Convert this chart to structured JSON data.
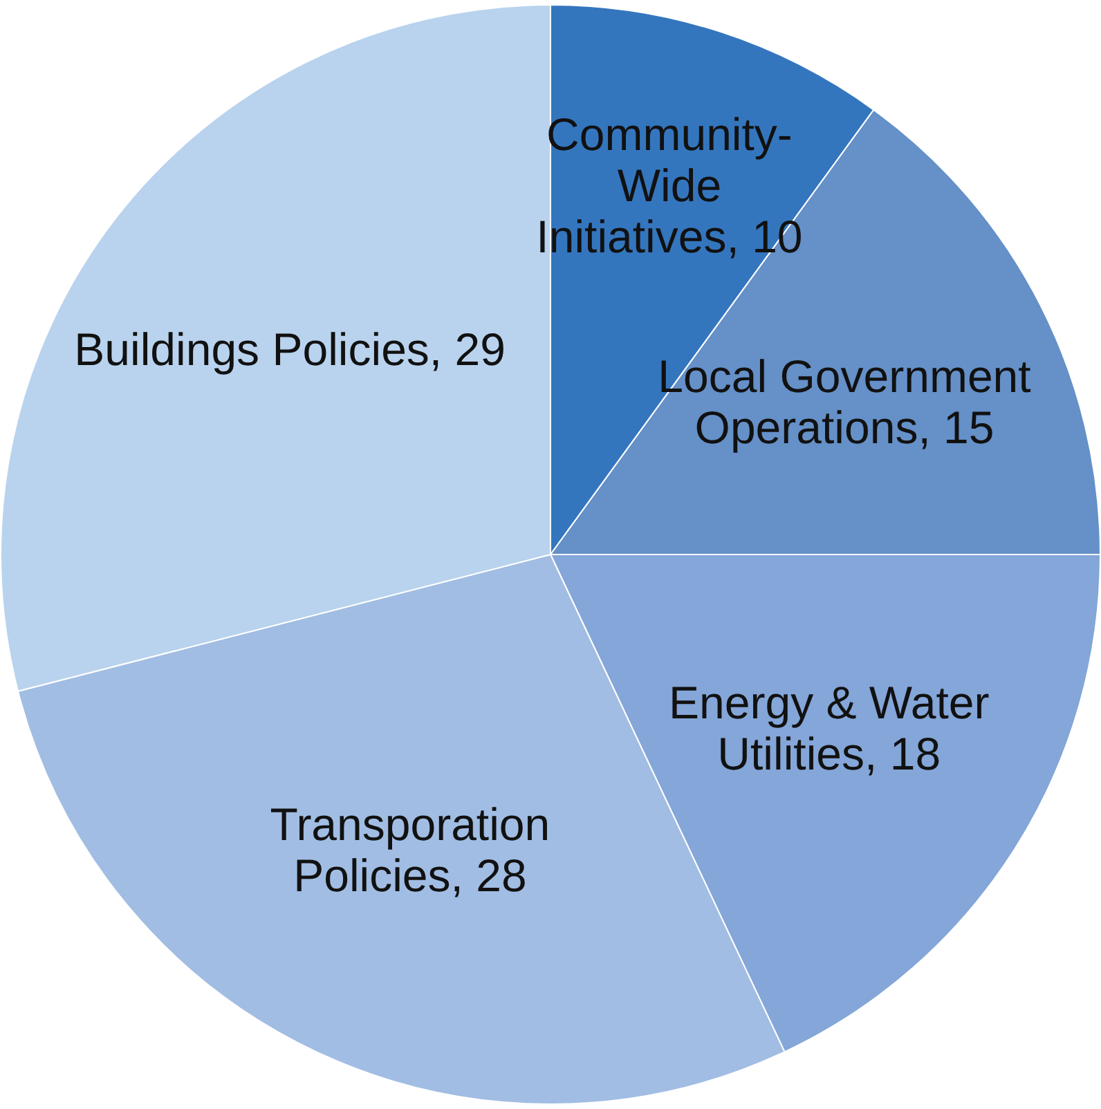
{
  "chart_data": {
    "type": "pie",
    "categories": [
      "Community-Wide Initiatives",
      "Local Government Operations",
      "Energy & Water Utilities",
      "Transporation Policies",
      "Buildings Policies"
    ],
    "values": [
      10,
      15,
      18,
      28,
      29
    ],
    "colors": [
      "#3476be",
      "#6590c8",
      "#84a6d8",
      "#a1bde3",
      "#b9d3ee"
    ],
    "value_labels": [
      ", 10",
      ", 15",
      ", 18",
      ", 28",
      ", 29"
    ],
    "legend": false
  }
}
